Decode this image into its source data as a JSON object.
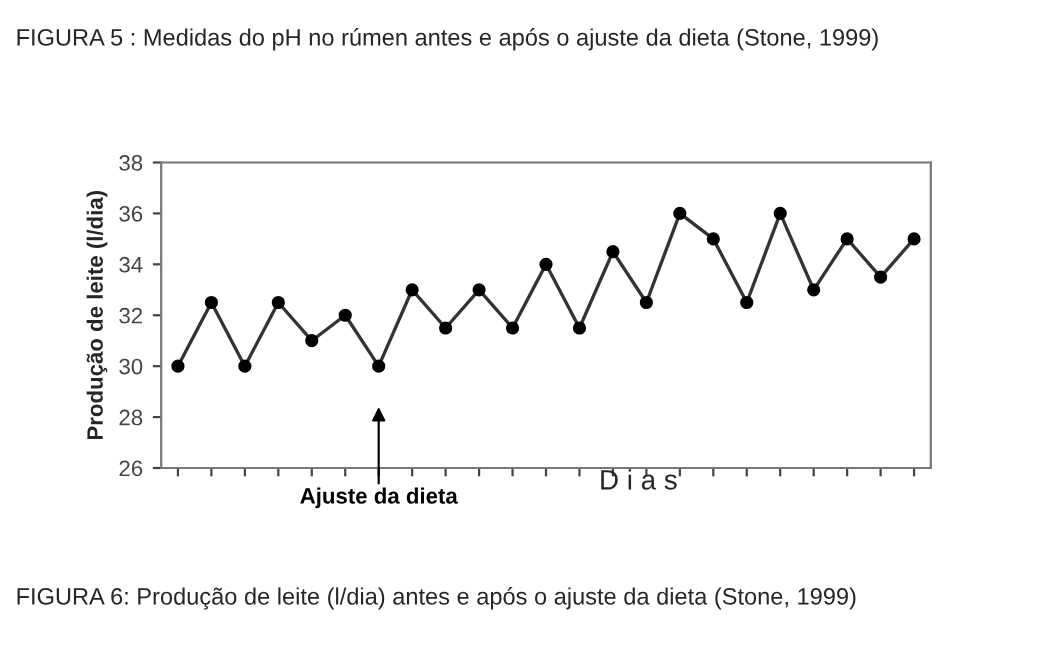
{
  "chart_data": {
    "type": "line",
    "title": "FIGURA 5 : Medidas do pH no rúmen antes e após o ajuste da dieta (Stone, 1999)",
    "xlabel": "D i a s",
    "ylabel": "Produção de leite (l/dia)",
    "categories": [
      null,
      null,
      null,
      null,
      null,
      null,
      "Ajuste da dieta",
      null,
      null,
      null,
      null,
      null,
      null,
      null,
      null,
      null,
      null,
      null,
      null,
      null,
      null,
      null,
      null
    ],
    "series": [
      {
        "color": "#333333",
        "values": [
          30,
          32.5,
          30,
          32.5,
          31,
          32,
          30,
          33,
          31.5,
          33,
          31.5,
          34,
          31.5,
          34.5,
          32.5,
          36,
          35,
          32.5,
          36,
          33,
          35,
          33.5,
          35
        ]
      }
    ],
    "ylim": [
      26,
      38
    ],
    "yticks": [
      26,
      28,
      30,
      32,
      34,
      36,
      38
    ],
    "marker": "circle",
    "line_style": "solid",
    "grid": false,
    "legend": false,
    "annotations": [
      "FIGURA 6: Produção de leite (l/dia) antes e após o ajuste da dieta (Stone, 1999)"
    ]
  }
}
